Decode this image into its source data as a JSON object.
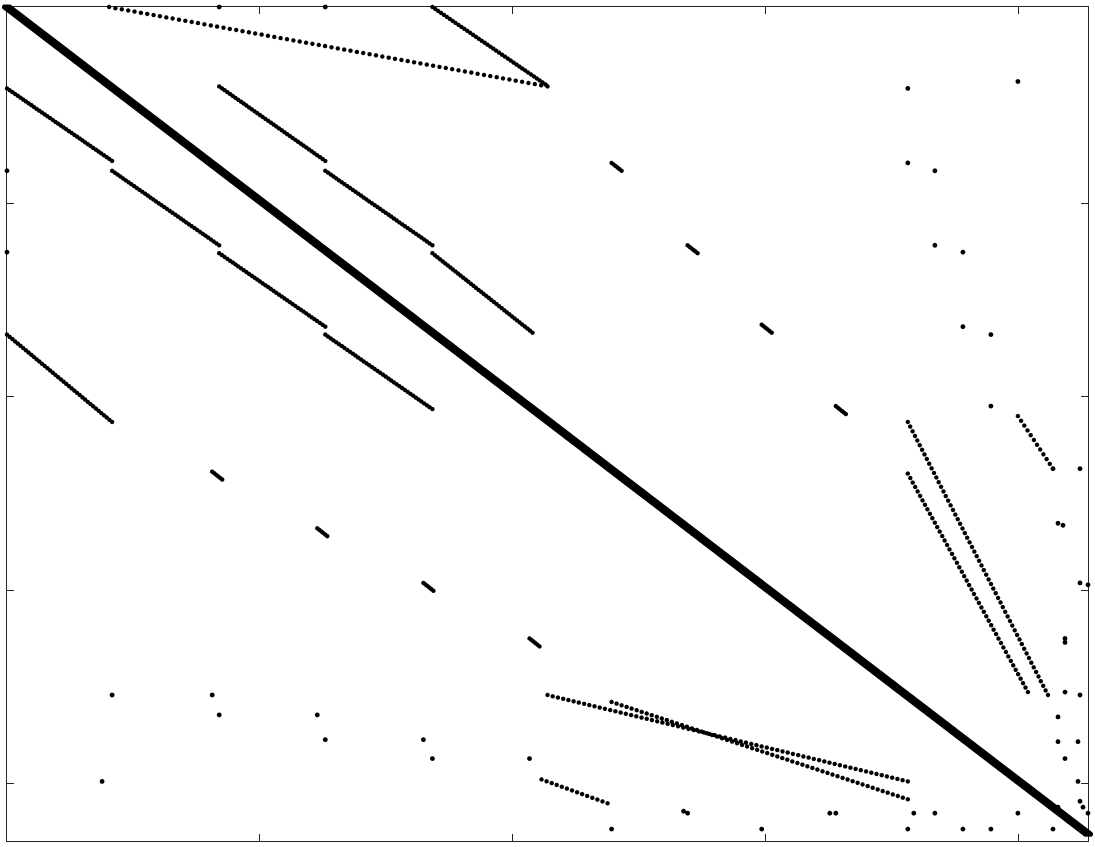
{
  "chart_data": {
    "type": "scatter",
    "subtype": "sparsity-pattern",
    "title": "",
    "xlabel": "",
    "ylabel": "",
    "xlim": [
      0,
      1080
    ],
    "ylim": [
      0,
      840
    ],
    "y_axis_inverted": true,
    "grid": false,
    "legend": "none",
    "xticks": [
      0,
      252,
      505,
      757,
      1010
    ],
    "yticks": [
      0,
      197,
      392,
      587,
      782
    ],
    "marker_color": "#000000",
    "segments": [
      {
        "name": "main-diagonal",
        "from": [
          0,
          0
        ],
        "to": [
          1080,
          833
        ],
        "count": 1100,
        "thickness": 3
      },
      {
        "name": "upper-band-1",
        "from": [
          102,
          0
        ],
        "to": [
          540,
          80
        ],
        "count": 70
      },
      {
        "name": "upper-band-2",
        "from": [
          212,
          80
        ],
        "to": [
          318,
          155
        ],
        "count": 40
      },
      {
        "name": "upper-band-3",
        "from": [
          318,
          165
        ],
        "to": [
          425,
          240
        ],
        "count": 40
      },
      {
        "name": "upper-band-4",
        "from": [
          425,
          248
        ],
        "to": [
          525,
          328
        ],
        "count": 40
      },
      {
        "name": "upper-band-5",
        "from": [
          425,
          0
        ],
        "to": [
          538,
          78
        ],
        "count": 40
      },
      {
        "name": "lower-band-1",
        "from": [
          0,
          82
        ],
        "to": [
          105,
          155
        ],
        "count": 40
      },
      {
        "name": "lower-band-2",
        "from": [
          105,
          165
        ],
        "to": [
          212,
          240
        ],
        "count": 40
      },
      {
        "name": "lower-band-3",
        "from": [
          212,
          248
        ],
        "to": [
          318,
          322
        ],
        "count": 40
      },
      {
        "name": "lower-band-4",
        "from": [
          318,
          330
        ],
        "to": [
          425,
          405
        ],
        "count": 40
      },
      {
        "name": "lower-band-5",
        "from": [
          0,
          330
        ],
        "to": [
          105,
          418
        ],
        "count": 40
      },
      {
        "name": "short-block-1",
        "from": [
          205,
          468
        ],
        "to": [
          215,
          476
        ],
        "count": 6
      },
      {
        "name": "short-block-2",
        "from": [
          310,
          525
        ],
        "to": [
          320,
          533
        ],
        "count": 6
      },
      {
        "name": "short-block-3",
        "from": [
          416,
          580
        ],
        "to": [
          426,
          588
        ],
        "count": 6
      },
      {
        "name": "short-block-4",
        "from": [
          522,
          636
        ],
        "to": [
          532,
          644
        ],
        "count": 6
      },
      {
        "name": "short-block-5",
        "from": [
          604,
          157
        ],
        "to": [
          614,
          165
        ],
        "count": 6
      },
      {
        "name": "short-block-6",
        "from": [
          680,
          240
        ],
        "to": [
          690,
          248
        ],
        "count": 6
      },
      {
        "name": "short-block-7",
        "from": [
          754,
          320
        ],
        "to": [
          764,
          328
        ],
        "count": 6
      },
      {
        "name": "short-block-8",
        "from": [
          828,
          402
        ],
        "to": [
          838,
          410
        ],
        "count": 6
      },
      {
        "name": "lower-curve-1",
        "from": [
          540,
          693
        ],
        "to": [
          900,
          780
        ],
        "count": 70
      },
      {
        "name": "lower-curve-2",
        "from": [
          604,
          700
        ],
        "to": [
          900,
          798
        ],
        "count": 60
      },
      {
        "name": "lower-curve-3",
        "from": [
          534,
          778
        ],
        "to": [
          600,
          802
        ],
        "count": 14
      },
      {
        "name": "right-curve-1",
        "from": [
          900,
          418
        ],
        "to": [
          1040,
          693
        ],
        "count": 60
      },
      {
        "name": "right-curve-2",
        "from": [
          900,
          470
        ],
        "to": [
          1020,
          690
        ],
        "count": 50
      },
      {
        "name": "right-curve-3",
        "from": [
          1010,
          412
        ],
        "to": [
          1045,
          465
        ],
        "count": 12
      }
    ],
    "isolated_points": [
      [
        212,
        0
      ],
      [
        318,
        0
      ],
      [
        0,
        165
      ],
      [
        0,
        247
      ],
      [
        900,
        82
      ],
      [
        1010,
        75
      ],
      [
        900,
        157
      ],
      [
        927,
        165
      ],
      [
        927,
        240
      ],
      [
        955,
        247
      ],
      [
        955,
        322
      ],
      [
        983,
        330
      ],
      [
        983,
        402
      ],
      [
        105,
        693
      ],
      [
        205,
        693
      ],
      [
        212,
        713
      ],
      [
        310,
        713
      ],
      [
        318,
        738
      ],
      [
        416,
        738
      ],
      [
        425,
        757
      ],
      [
        522,
        757
      ],
      [
        95,
        780
      ],
      [
        604,
        828
      ],
      [
        676,
        810
      ],
      [
        680,
        812
      ],
      [
        754,
        828
      ],
      [
        822,
        812
      ],
      [
        828,
        812
      ],
      [
        900,
        828
      ],
      [
        906,
        812
      ],
      [
        927,
        812
      ],
      [
        955,
        828
      ],
      [
        983,
        828
      ],
      [
        1010,
        812
      ],
      [
        1045,
        828
      ],
      [
        1045,
        465
      ],
      [
        1072,
        465
      ],
      [
        1050,
        520
      ],
      [
        1055,
        522
      ],
      [
        1072,
        580
      ],
      [
        1080,
        582
      ],
      [
        1057,
        636
      ],
      [
        1057,
        640
      ],
      [
        1057,
        690
      ],
      [
        1072,
        693
      ],
      [
        1050,
        715
      ],
      [
        1070,
        740
      ],
      [
        1050,
        740
      ],
      [
        1057,
        757
      ],
      [
        1070,
        780
      ],
      [
        1072,
        800
      ],
      [
        1075,
        806
      ],
      [
        1080,
        812
      ],
      [
        1050,
        806
      ],
      [
        1060,
        820
      ]
    ]
  }
}
